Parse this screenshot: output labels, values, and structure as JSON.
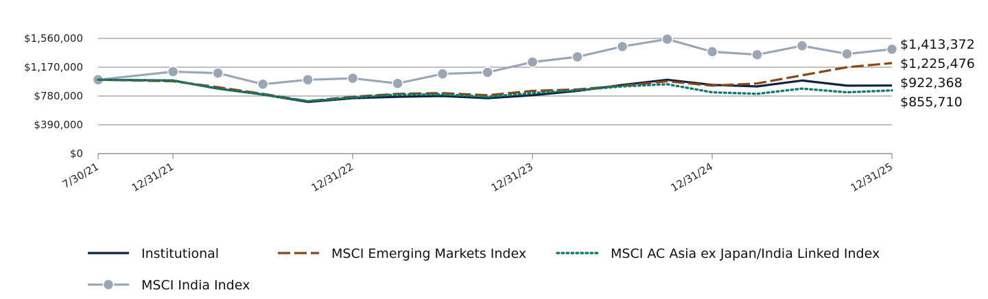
{
  "chart_data": {
    "type": "line",
    "title": "",
    "xlabel": "",
    "ylabel": "",
    "ylim": [
      0,
      1560000
    ],
    "y_ticks": [
      0,
      390000,
      780000,
      1170000,
      1560000
    ],
    "y_tick_labels": [
      "$0",
      "$390,000",
      "$780,000",
      "$1,170,000",
      "$1,560,000"
    ],
    "x_tick_labels": [
      "7/30/21",
      "12/31/21",
      "12/31/22",
      "12/31/23",
      "12/31/24",
      "12/31/25"
    ],
    "x_tick_positions": [
      0,
      5,
      17,
      29,
      41,
      53
    ],
    "x": [
      0,
      5,
      8,
      11,
      14,
      17,
      20,
      23,
      26,
      29,
      32,
      35,
      38,
      41,
      44,
      47,
      50,
      53
    ],
    "end_labels": [
      "$1,413,372",
      "$1,225,476",
      "$922,368",
      "$855,710"
    ],
    "series": [
      {
        "name": "Institutional",
        "color": "#0d2240",
        "style": "solid",
        "values": [
          1000000,
          990000,
          880000,
          800000,
          700000,
          750000,
          770000,
          780000,
          750000,
          790000,
          850000,
          930000,
          1000000,
          930000,
          910000,
          990000,
          920000,
          922368
        ]
      },
      {
        "name": "MSCI Emerging Markets Index",
        "color": "#8b4513",
        "style": "dashed",
        "values": [
          1000000,
          980000,
          900000,
          810000,
          710000,
          770000,
          810000,
          820000,
          790000,
          850000,
          870000,
          920000,
          980000,
          920000,
          950000,
          1060000,
          1170000,
          1225476
        ]
      },
      {
        "name": "MSCI AC Asia ex Japan/India Linked Index",
        "color": "#0a7c6c",
        "style": "dotted",
        "values": [
          1000000,
          990000,
          880000,
          800000,
          710000,
          760000,
          800000,
          800000,
          770000,
          820000,
          860000,
          910000,
          940000,
          830000,
          810000,
          880000,
          830000,
          855710
        ]
      },
      {
        "name": "MSCI India Index",
        "color": "#9aa6b4",
        "style": "marker",
        "values": [
          1000000,
          1110000,
          1090000,
          940000,
          1000000,
          1020000,
          950000,
          1080000,
          1100000,
          1240000,
          1310000,
          1450000,
          1550000,
          1380000,
          1340000,
          1460000,
          1350000,
          1413372
        ]
      }
    ],
    "legend_position": "bottom"
  }
}
